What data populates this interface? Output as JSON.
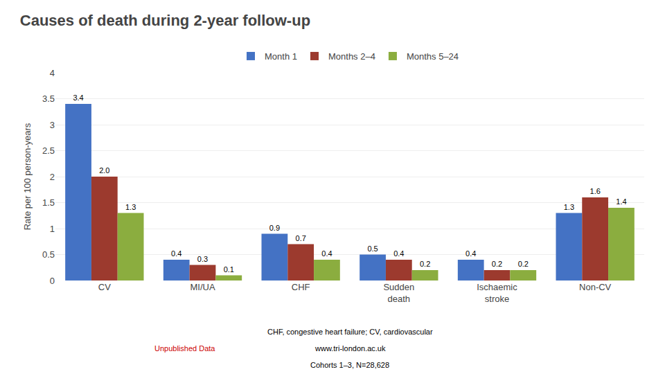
{
  "chart_data": {
    "type": "bar",
    "title": "Causes of death during 2-year follow-up",
    "categories": [
      "CV",
      "MI/UA",
      "CHF",
      "Sudden\ndeath",
      "Ischaemic\nstroke",
      "Non-CV"
    ],
    "series": [
      {
        "name": "Month 1",
        "color": "#4472C4",
        "values": [
          3.4,
          0.4,
          0.9,
          0.5,
          0.4,
          1.3
        ],
        "value_labels": [
          "3.4",
          "0.4",
          "0.9",
          "0.5",
          "0.4",
          "1.3"
        ]
      },
      {
        "name": "Months 2–4",
        "color": "#9C3A2E",
        "values": [
          2.0,
          0.3,
          0.7,
          0.4,
          0.2,
          1.6
        ],
        "value_labels": [
          "2.0",
          "0.3",
          "0.7",
          "0.4",
          "0.2",
          "1.6"
        ]
      },
      {
        "name": "Months 5–24",
        "color": "#8BAD3F",
        "values": [
          1.3,
          0.1,
          0.4,
          0.2,
          0.2,
          1.4
        ],
        "value_labels": [
          "1.3",
          "0.1",
          "0.4",
          "0.2",
          "0.2",
          "1.4"
        ]
      }
    ],
    "ylabel": "Rate per 100 person-years",
    "ylim": [
      0,
      4
    ],
    "yticks": [
      0,
      0.5,
      1,
      1.5,
      2,
      2.5,
      3,
      3.5,
      4
    ],
    "grid": true,
    "legend": "top",
    "data_labels": true,
    "annotations": [
      {
        "text": "CHF, congestive heart failure; CV, cardiovascular"
      },
      {
        "text": "www.tri-london.ac.uk"
      },
      {
        "text": "Cohorts 1–3, N=28,628"
      },
      {
        "text": "Unpublished Data",
        "color": "#CC0000"
      }
    ]
  }
}
